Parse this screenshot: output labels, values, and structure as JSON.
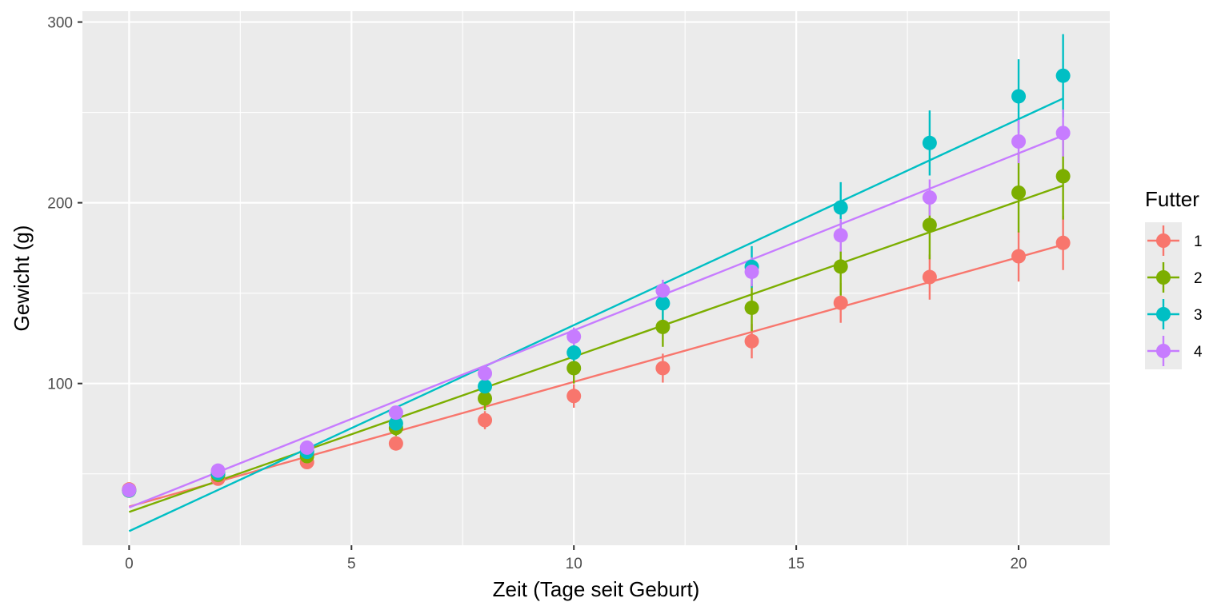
{
  "chart_data": {
    "type": "scatter",
    "xlabel": "Zeit (Tage seit Geburt)",
    "ylabel": "Gewicht (g)",
    "xlim": [
      -1.05,
      22.05
    ],
    "ylim": [
      10.5,
      306
    ],
    "x_ticks": [
      0,
      5,
      10,
      15,
      20
    ],
    "y_ticks": [
      100,
      200,
      300
    ],
    "x_tick_labels": [
      "0",
      "5",
      "10",
      "15",
      "20"
    ],
    "y_tick_labels": [
      "100",
      "200",
      "300"
    ],
    "grid": true,
    "legend": {
      "title": "Futter",
      "position": "right"
    },
    "series": [
      {
        "name": "1",
        "color": "#F8766D",
        "x": [
          0,
          2,
          4,
          6,
          8,
          10,
          12,
          14,
          16,
          18,
          20,
          21
        ],
        "y": [
          41.4,
          47.3,
          56.5,
          66.8,
          79.7,
          93.1,
          108.5,
          123.4,
          144.6,
          158.9,
          170.4,
          177.8
        ],
        "err": [
          1.0,
          1.5,
          2.5,
          3.5,
          5.0,
          6.5,
          8.0,
          9.5,
          11.0,
          12.5,
          14.0,
          15.0
        ],
        "fit": {
          "intercept": 31.9,
          "slope": 6.9
        }
      },
      {
        "name": "2",
        "color": "#7CAE00",
        "x": [
          0,
          2,
          4,
          6,
          8,
          10,
          12,
          14,
          16,
          18,
          20,
          21
        ],
        "y": [
          40.7,
          49.4,
          59.8,
          75.4,
          91.7,
          108.5,
          131.3,
          141.9,
          164.7,
          187.7,
          205.6,
          214.7
        ],
        "err": [
          1.0,
          1.5,
          2.5,
          4.5,
          6.5,
          8.5,
          11.0,
          13.0,
          16.0,
          19.0,
          22.0,
          24.0
        ],
        "fit": {
          "intercept": 28.9,
          "slope": 8.6
        }
      },
      {
        "name": "3",
        "color": "#00BFC4",
        "x": [
          0,
          2,
          4,
          6,
          8,
          10,
          12,
          14,
          16,
          18,
          20,
          21
        ],
        "y": [
          40.8,
          50.4,
          62.2,
          77.9,
          98.4,
          117.1,
          144.4,
          164.5,
          197.4,
          233.1,
          258.9,
          270.3
        ],
        "err": [
          1.0,
          1.5,
          2.5,
          4.0,
          6.0,
          8.0,
          10.0,
          11.5,
          14.0,
          18.0,
          20.5,
          23.0
        ],
        "fit": {
          "intercept": 18.3,
          "slope": 11.4
        }
      },
      {
        "name": "4",
        "color": "#C77CFF",
        "x": [
          0,
          2,
          4,
          6,
          8,
          10,
          12,
          14,
          16,
          18,
          20,
          21
        ],
        "y": [
          41.0,
          51.8,
          64.5,
          83.9,
          105.6,
          126.0,
          151.4,
          161.8,
          182.0,
          202.9,
          233.9,
          238.6
        ],
        "err": [
          1.0,
          1.5,
          2.0,
          3.0,
          4.0,
          5.0,
          6.0,
          8.0,
          9.0,
          10.0,
          12.0,
          13.0
        ],
        "fit": {
          "intercept": 31.4,
          "slope": 9.8
        }
      }
    ]
  }
}
